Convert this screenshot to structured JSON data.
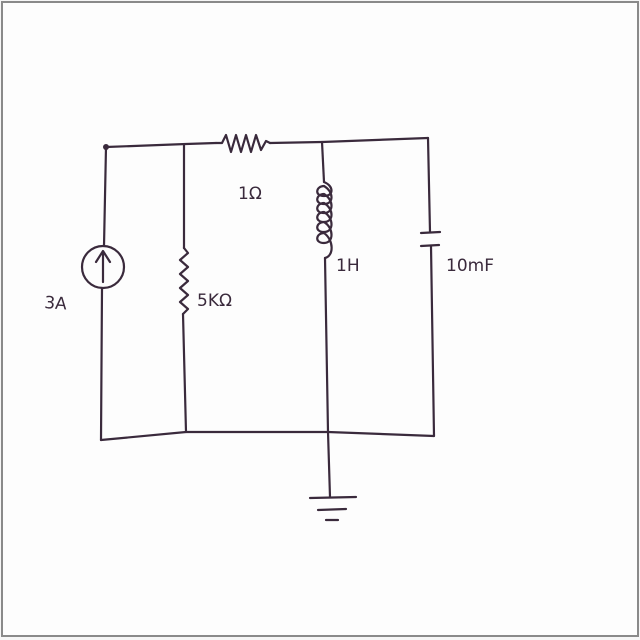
{
  "diagram": {
    "labels": {
      "source": "3A",
      "resistor_shunt": "5KΩ",
      "resistor_series": "1Ω",
      "inductor": "1H",
      "capacitor": "10mF"
    },
    "colors": {
      "ink": "#3a2a3c",
      "paper": "#fdfdfd",
      "border": "#8a8a8a"
    }
  }
}
